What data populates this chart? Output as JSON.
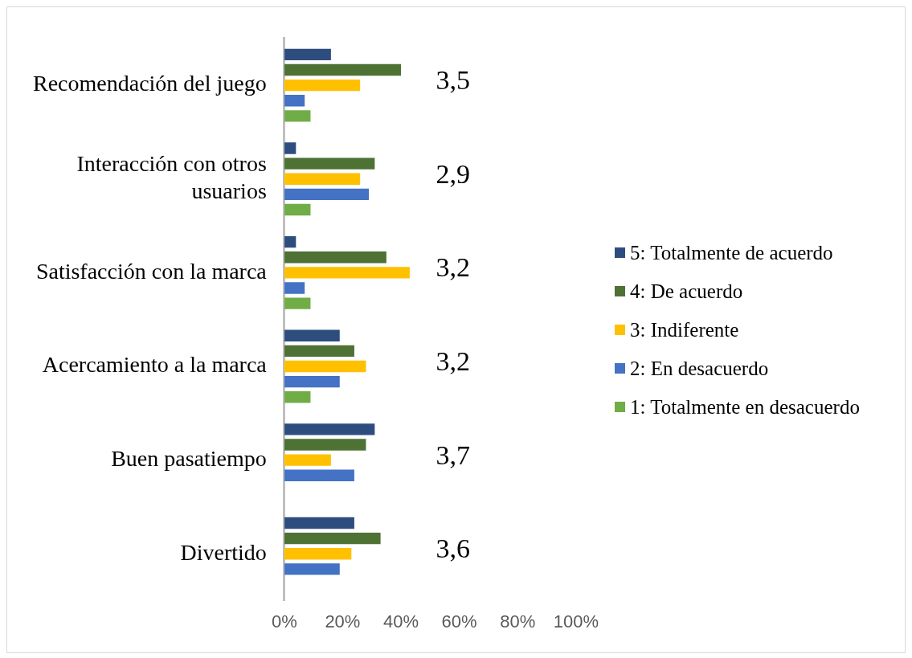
{
  "chart_data": {
    "type": "bar",
    "orientation": "horizontal",
    "categories": [
      "Recomendación del juego",
      "Interacción con otros usuarios",
      "Satisfacción con la marca",
      "Acercamiento a la marca",
      "Buen pasatiempo",
      "Divertido"
    ],
    "series": [
      {
        "name": "5: Totalmente de acuerdo",
        "color": "#2e4d7f",
        "values": [
          16,
          4,
          4,
          19,
          31,
          24
        ]
      },
      {
        "name": "4: De acuerdo",
        "color": "#4e7134",
        "values": [
          40,
          31,
          35,
          24,
          28,
          33
        ]
      },
      {
        "name": "3: Indiferente",
        "color": "#ffc000",
        "values": [
          26,
          26,
          43,
          28,
          16,
          23
        ]
      },
      {
        "name": "2: En desacuerdo",
        "color": "#4472c4",
        "values": [
          7,
          29,
          7,
          19,
          24,
          19
        ]
      },
      {
        "name": "1: Totalmente en desacuerdo",
        "color": "#70ad47",
        "values": [
          9,
          9,
          9,
          9,
          0,
          0
        ]
      }
    ],
    "xlim": [
      0,
      100
    ],
    "xticks": [
      {
        "value": 0,
        "label": "0%"
      },
      {
        "value": 20,
        "label": "20%"
      },
      {
        "value": 40,
        "label": "40%"
      },
      {
        "value": 60,
        "label": "60%"
      },
      {
        "value": 80,
        "label": "80%"
      },
      {
        "value": 100,
        "label": "100%"
      }
    ],
    "grid": false,
    "legend": "right",
    "annotations": [
      "3,5",
      "2,9",
      "3,2",
      "3,2",
      "3,7",
      "3,6"
    ]
  }
}
